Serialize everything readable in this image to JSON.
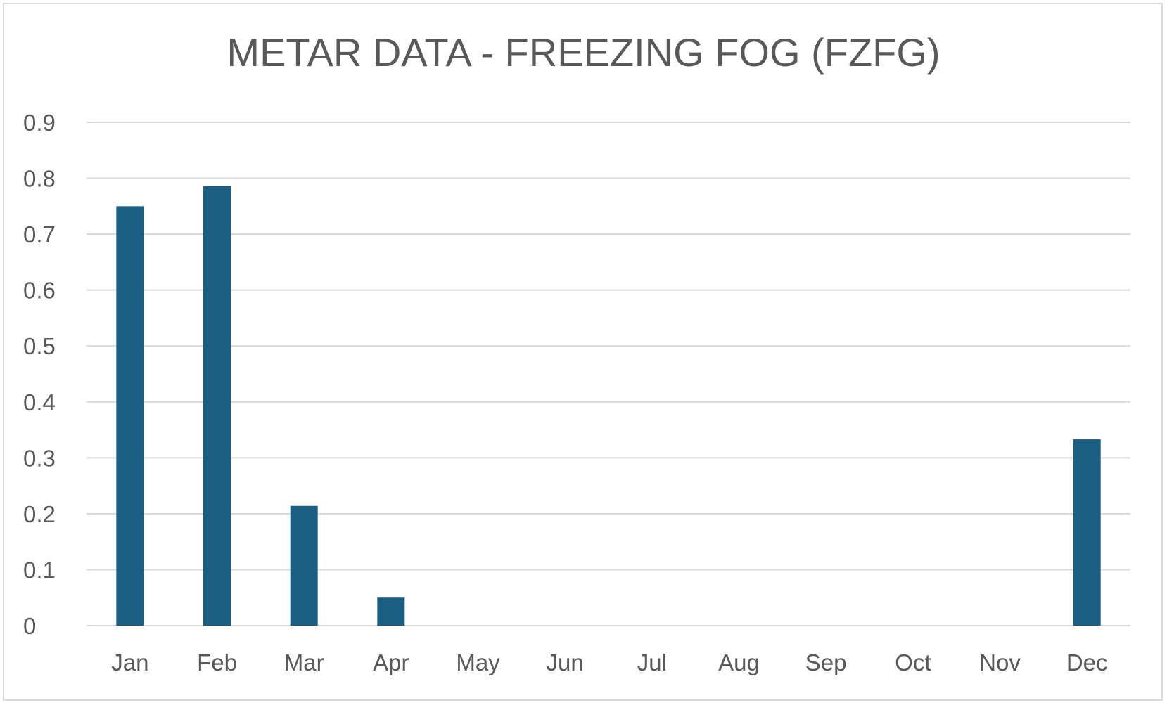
{
  "chart_data": {
    "type": "bar",
    "title": "METAR DATA - FREEZING FOG (FZFG)",
    "xlabel": "",
    "ylabel": "",
    "categories": [
      "Jan",
      "Feb",
      "Mar",
      "Apr",
      "May",
      "Jun",
      "Jul",
      "Aug",
      "Sep",
      "Oct",
      "Nov",
      "Dec"
    ],
    "values": [
      0.75,
      0.786,
      0.214,
      0.05,
      0,
      0,
      0,
      0,
      0,
      0,
      0,
      0.333
    ],
    "ylim": [
      0,
      0.9
    ],
    "yticks": [
      "0",
      "0.1",
      "0.2",
      "0.3",
      "0.4",
      "0.5",
      "0.6",
      "0.7",
      "0.8",
      "0.9"
    ],
    "grid": true,
    "legend": "none",
    "colors": {
      "bar": "#1a5e82",
      "grid": "#d9d9d9",
      "text": "#595959"
    }
  }
}
